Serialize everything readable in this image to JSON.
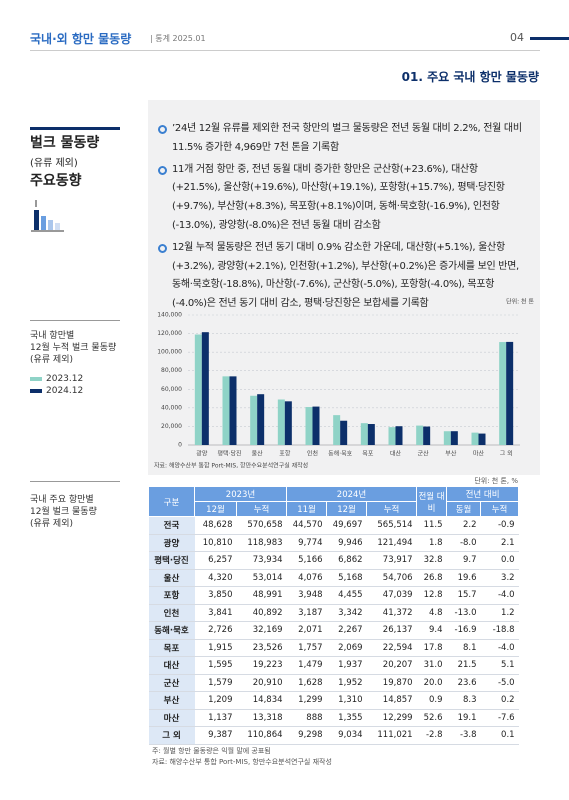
{
  "header": {
    "title": "국내·외 항만 물동량",
    "subtitle": "| 통계 2025.01",
    "page": "04"
  },
  "section_title": "01. 주요 국내 항만 물동량",
  "sidebar": {
    "title": "벌크 물동량",
    "subtitle": "(유류 제외)",
    "heading": "주요동향"
  },
  "bullets": [
    "’24년 12월 유류를 제외한 전국 항만의 벌크 물동량은 전년 동월 대비 2.2%, 전월 대비 11.5% 증가한 4,969만 7천 톤을 기록함",
    "11개 거점 항만 중, 전년 동월 대비 증가한 항만은 군산항(+23.6%), 대산항(+21.5%), 울산항(+19.6%), 마산항(+19.1%), 포항항(+15.7%), 평택·당진항(+9.7%), 부산항(+8.3%), 목포항(+8.1%)이며, 동해·묵호항(-16.9%), 인천항(-13.0%), 광양항(-8.0%)은 전년 동월 대비 감소함",
    "12월 누적 물동량은 전년 동기 대비 0.9% 감소한 가운데, 대산항(+5.1%), 울산항(+3.2%), 광양항(+2.1%), 인천항(+1.2%), 부산항(+0.2%)은 증가세를 보인 반면, 동해·묵호항(-18.8%), 마산항(-7.6%), 군산항(-5.0%), 포항항(-4.0%), 목포항(-4.0%)은 전년 동기 대비 감소, 평택·당진항은 보합세를 기록함"
  ],
  "chart_caption": [
    "국내 항만별",
    "12월 누적 벌크 물동량",
    "(유류 제외)"
  ],
  "chart_data": {
    "type": "bar",
    "unit": "단위: 천 톤",
    "categories": [
      "광양",
      "평택·당진",
      "울산",
      "포항",
      "인천",
      "동해·묵호",
      "목포",
      "대산",
      "군산",
      "부산",
      "마산",
      "그 외"
    ],
    "series": [
      {
        "name": "2023.12",
        "color": "#8fd3c7",
        "values": [
          118983,
          73934,
          53014,
          48991,
          40892,
          32169,
          23526,
          19223,
          20910,
          14834,
          13318,
          110864
        ]
      },
      {
        "name": "2024.12",
        "color": "#0c2f6a",
        "values": [
          121494,
          73917,
          54706,
          47039,
          41372,
          26137,
          22594,
          20207,
          19870,
          14857,
          12299,
          111021
        ]
      }
    ],
    "ylim": [
      0,
      140000
    ],
    "yticks": [
      0,
      {
        "value": 20000,
        "label": "20,000"
      },
      {
        "value": 40000,
        "label": "40,000"
      },
      {
        "value": 60000,
        "label": "60,000"
      },
      {
        "value": 80000,
        "label": "80,000"
      },
      {
        "value": 100000,
        "label": "100,000"
      },
      {
        "value": 120000,
        "label": "120,000"
      },
      {
        "value": 140000,
        "label": "140,000"
      }
    ],
    "grid": true,
    "source": "자료: 해양수산부 통합 Port-MIS, 항만수요분석연구실 재작성"
  },
  "table": {
    "caption": [
      "국내 주요 항만별",
      "12월 벌크 물동량",
      "(유류 제외)"
    ],
    "unit": "단위: 천 톤, %",
    "group_headers": [
      "구분",
      "2023년",
      "2024년",
      "전월 대비",
      "전년 대비"
    ],
    "sub_headers": [
      "12월",
      "누적",
      "11월",
      "12월",
      "누적",
      "동월",
      "누적"
    ],
    "rows": [
      [
        "전국",
        "48,628",
        "570,658",
        "44,570",
        "49,697",
        "565,514",
        "11.5",
        "2.2",
        "-0.9"
      ],
      [
        "광양",
        "10,810",
        "118,983",
        "9,774",
        "9,946",
        "121,494",
        "1.8",
        "-8.0",
        "2.1"
      ],
      [
        "평택·당진",
        "6,257",
        "73,934",
        "5,166",
        "6,862",
        "73,917",
        "32.8",
        "9.7",
        "0.0"
      ],
      [
        "울산",
        "4,320",
        "53,014",
        "4,076",
        "5,168",
        "54,706",
        "26.8",
        "19.6",
        "3.2"
      ],
      [
        "포항",
        "3,850",
        "48,991",
        "3,948",
        "4,455",
        "47,039",
        "12.8",
        "15.7",
        "-4.0"
      ],
      [
        "인천",
        "3,841",
        "40,892",
        "3,187",
        "3,342",
        "41,372",
        "4.8",
        "-13.0",
        "1.2"
      ],
      [
        "동해·묵호",
        "2,726",
        "32,169",
        "2,071",
        "2,267",
        "26,137",
        "9.4",
        "-16.9",
        "-18.8"
      ],
      [
        "목포",
        "1,915",
        "23,526",
        "1,757",
        "2,069",
        "22,594",
        "17.8",
        "8.1",
        "-4.0"
      ],
      [
        "대산",
        "1,595",
        "19,223",
        "1,479",
        "1,937",
        "20,207",
        "31.0",
        "21.5",
        "5.1"
      ],
      [
        "군산",
        "1,579",
        "20,910",
        "1,628",
        "1,952",
        "19,870",
        "20.0",
        "23.6",
        "-5.0"
      ],
      [
        "부산",
        "1,209",
        "14,834",
        "1,299",
        "1,310",
        "14,857",
        "0.9",
        "8.3",
        "0.2"
      ],
      [
        "마산",
        "1,137",
        "13,318",
        "888",
        "1,355",
        "12,299",
        "52.6",
        "19.1",
        "-7.6"
      ],
      [
        "그 외",
        "9,387",
        "110,864",
        "9,298",
        "9,034",
        "111,021",
        "-2.8",
        "-3.8",
        "0.1"
      ]
    ],
    "notes": [
      "주: 월별 항만 물동량은 익월 말에 공표됨",
      "자료: 해양수산부 통합 Port-MIS, 항만수요분석연구실 재작성"
    ]
  }
}
